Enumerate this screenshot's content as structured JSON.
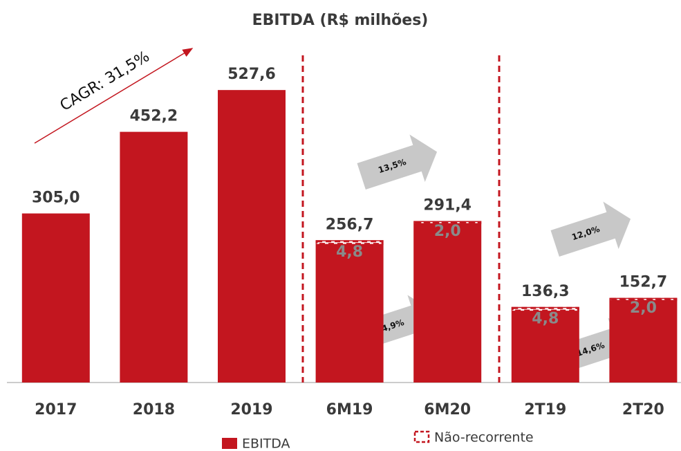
{
  "chart_data": {
    "type": "bar",
    "title": "EBITDA (R$ milhões)",
    "categories": [
      "2017",
      "2018",
      "2019",
      "6M19",
      "6M20",
      "2T19",
      "2T20"
    ],
    "series": [
      {
        "name": "EBITDA",
        "color": "#c3161f",
        "values": [
          305.0,
          452.2,
          527.6,
          256.7,
          291.4,
          136.3,
          152.7
        ],
        "value_labels": [
          "305,0",
          "452,2",
          "527,6",
          "256,7",
          "291,4",
          "136,3",
          "152,7"
        ]
      },
      {
        "name": "Não-recorrente",
        "color": "#c3161f",
        "values": [
          null,
          null,
          null,
          4.8,
          2.0,
          4.8,
          2.0
        ],
        "value_labels": [
          null,
          null,
          null,
          "4,8",
          "2,0",
          "4,8",
          "2,0"
        ]
      }
    ],
    "ylim": [
      0,
      690
    ],
    "annotations": [
      "CAGR: 31,5%",
      "13,5%",
      "14,9%",
      "12,0%",
      "14,6%"
    ]
  }
}
